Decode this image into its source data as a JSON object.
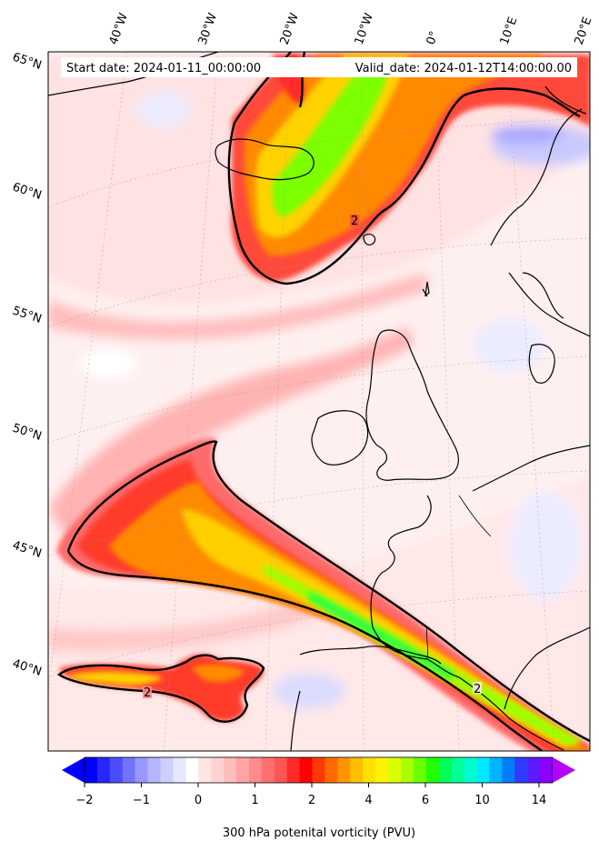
{
  "header": {
    "start_date": "Start date: 2024-01-11_00:00:00",
    "valid_date": "Valid_date: 2024-01-12T14:00:00.00"
  },
  "longitude_labels": [
    "40°W",
    "30°W",
    "20°W",
    "10°W",
    "0°",
    "10°E",
    "20°E"
  ],
  "latitude_labels": [
    "65°N",
    "60°N",
    "55°N",
    "50°N",
    "45°N",
    "40°N"
  ],
  "contour": {
    "level_label": "2",
    "color": "#000000"
  },
  "colorbar": {
    "label": "300 hPa potenital vorticity (PVU)",
    "tick_labels": [
      "−2",
      "−1",
      "0",
      "1",
      "2",
      "4",
      "6",
      "10",
      "14"
    ],
    "colors": [
      "#0000ff",
      "#2626ff",
      "#4c4cff",
      "#7272ff",
      "#9898ff",
      "#b4b4ff",
      "#cfcfff",
      "#e6e6ff",
      "#ffffff",
      "#ffe4e4",
      "#ffd2d2",
      "#ffbdbd",
      "#ffa3a3",
      "#ff8a8a",
      "#ff6f6f",
      "#ff5555",
      "#ff2a2a",
      "#ff0000",
      "#ff3a00",
      "#ff6a00",
      "#ff9500",
      "#ffbf00",
      "#ffe000",
      "#fff400",
      "#d9ff00",
      "#a8ff00",
      "#6cff00",
      "#22ff00",
      "#00ff55",
      "#00ff99",
      "#00ffcc",
      "#00e8ff",
      "#00b4ff",
      "#007cff",
      "#2f3cff",
      "#5a1cff",
      "#8c00ff"
    ],
    "under_color": "#0000ff",
    "over_color": "#b400ff"
  },
  "map": {
    "projection": "conic",
    "gridlines": true,
    "coastline_color": "#000000"
  }
}
